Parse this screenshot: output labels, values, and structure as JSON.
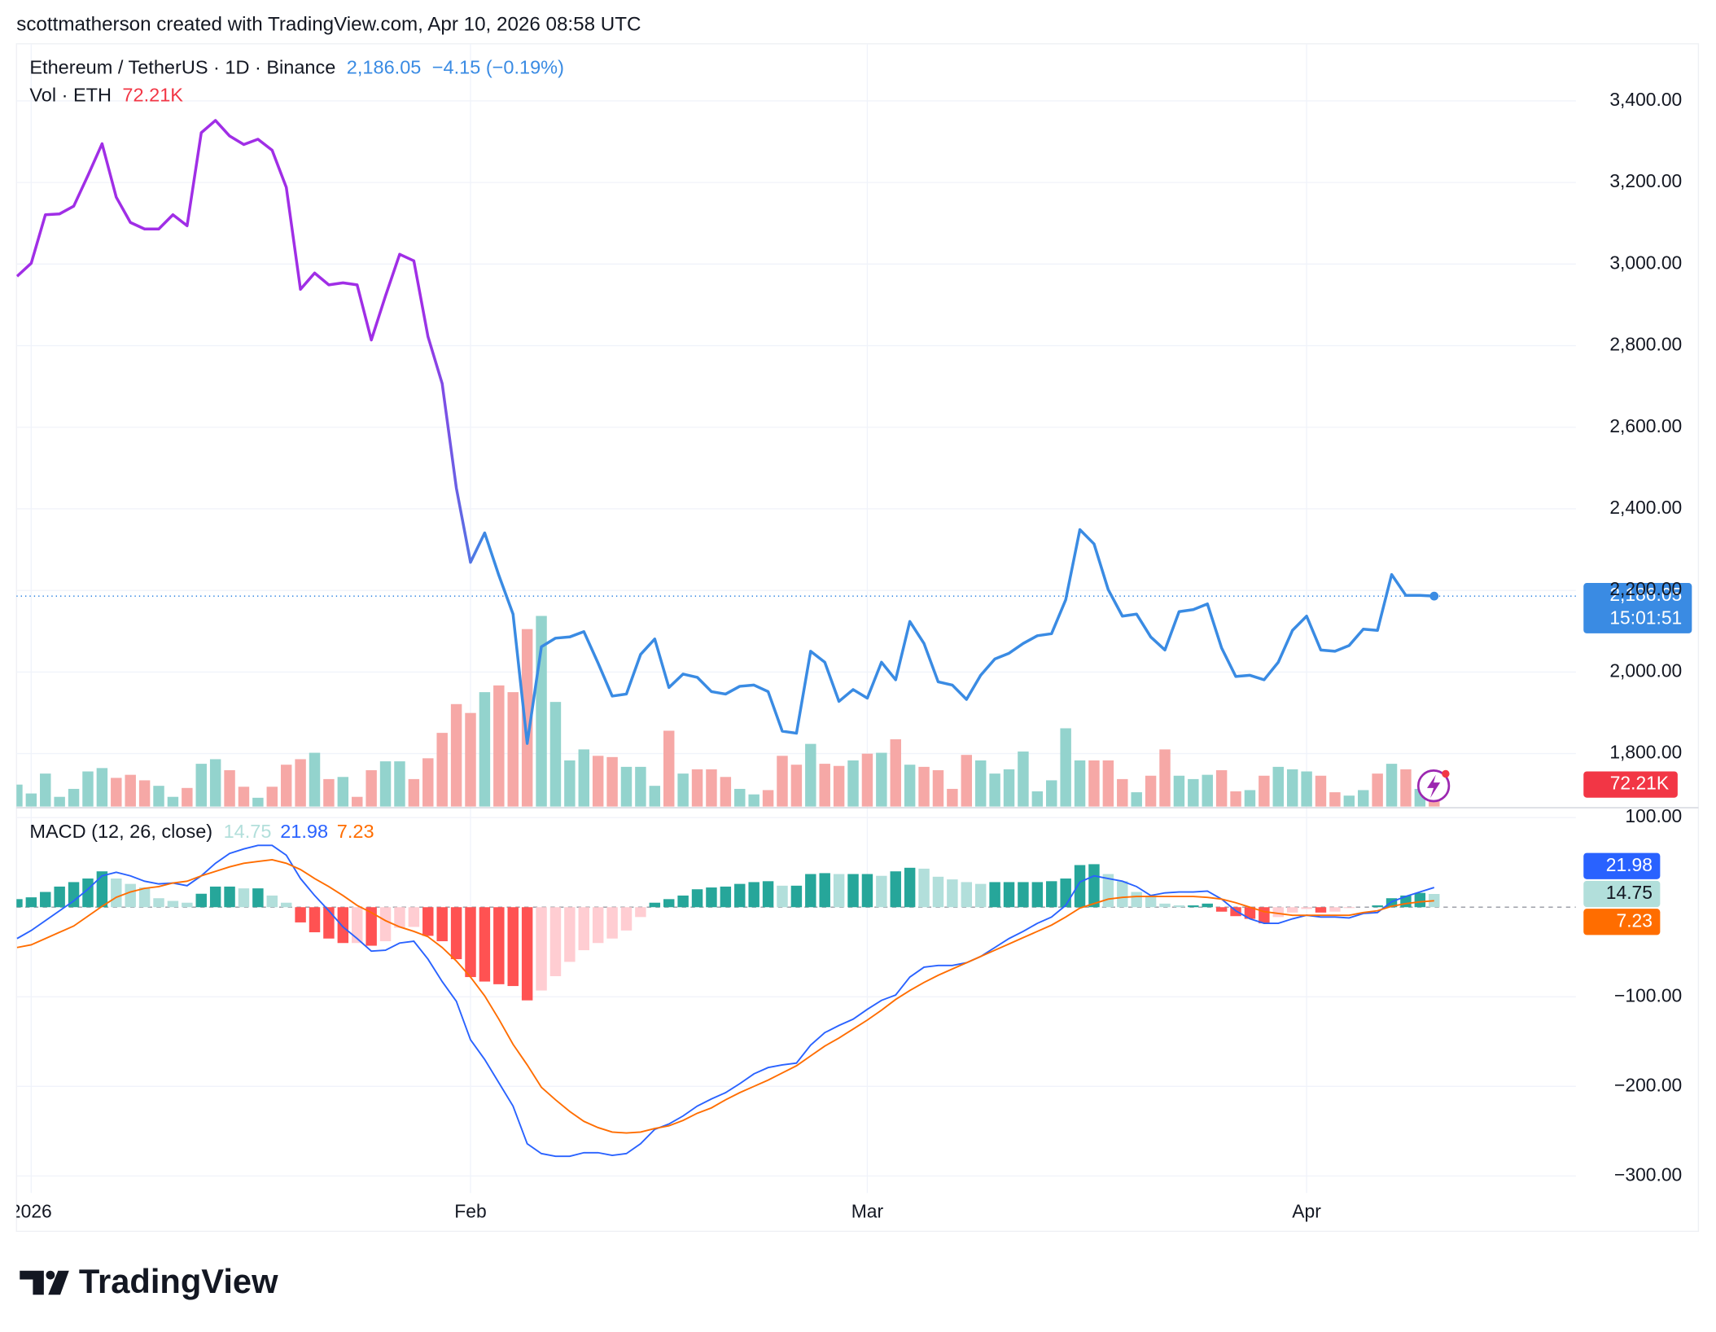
{
  "credit": "scottmatherson created with TradingView.com, Apr 10, 2026 08:58 UTC",
  "brand": "TradingView",
  "chart_data": [
    {
      "type": "line",
      "title": "Ethereum / TetherUS · 1D · Binance",
      "last_label": "2,186.05",
      "change_label": "−4.15 (−0.19%)",
      "countdown": "15:01:51",
      "color": "#3a8be3",
      "color_start": "#a02ee6",
      "x": [
        -1,
        0,
        1,
        2,
        3,
        4,
        5,
        6,
        7,
        8,
        9,
        10,
        11,
        12,
        13,
        14,
        15,
        16,
        17,
        18,
        19,
        20,
        21,
        22,
        23,
        24,
        25,
        26,
        27,
        28,
        29,
        30,
        31,
        32,
        33,
        34,
        35,
        36,
        37,
        38,
        39,
        40,
        41,
        42,
        43,
        44,
        45,
        46,
        47,
        48,
        49,
        50,
        51,
        52,
        53,
        54,
        55,
        56,
        57,
        58,
        59,
        60,
        61,
        62,
        63,
        64,
        65,
        66,
        67,
        68,
        69,
        70,
        71,
        72,
        73,
        74,
        75,
        76,
        77,
        78,
        79,
        80,
        81,
        82,
        83,
        84,
        85,
        86,
        87,
        88,
        89,
        90,
        91,
        92,
        93,
        94,
        95,
        96,
        97,
        98,
        99
      ],
      "values": [
        2970,
        3002,
        3121,
        3123,
        3142,
        3217,
        3295,
        3164,
        3102,
        3086,
        3086,
        3121,
        3094,
        3322,
        3352,
        3314,
        3293,
        3306,
        3279,
        3188,
        2938,
        2978,
        2949,
        2954,
        2949,
        2814,
        2922,
        3024,
        3008,
        2822,
        2707,
        2451,
        2269,
        2341,
        2237,
        2142,
        1825,
        2062,
        2083,
        2086,
        2099,
        2022,
        1941,
        1946,
        2043,
        2081,
        1962,
        1995,
        1987,
        1952,
        1946,
        1965,
        1968,
        1952,
        1855,
        1850,
        2051,
        2024,
        1928,
        1957,
        1936,
        2024,
        1981,
        2124,
        2070,
        1976,
        1968,
        1933,
        1992,
        2032,
        2046,
        2070,
        2089,
        2094,
        2177,
        2349,
        2314,
        2202,
        2137,
        2142,
        2086,
        2054,
        2148,
        2153,
        2167,
        2059,
        1989,
        1992,
        1981,
        2024,
        2102,
        2137,
        2054,
        2051,
        2065,
        2105,
        2102,
        2239,
        2188,
        2188,
        2186.05
      ],
      "xlim": [
        -1.04,
        109
      ],
      "xticks": [
        {
          "value": 0,
          "label": "2026"
        },
        {
          "value": 31,
          "label": "Feb"
        },
        {
          "value": 59,
          "label": "Mar"
        },
        {
          "value": 90,
          "label": "Apr"
        }
      ],
      "ylim": [
        1670,
        3540
      ],
      "yticks": [
        {
          "value": 1800,
          "label": "1,800.00"
        },
        {
          "value": 2000,
          "label": "2,000.00"
        },
        {
          "value": 2200,
          "label": "2,200.00"
        },
        {
          "value": 2400,
          "label": "2,400.00"
        },
        {
          "value": 2600,
          "label": "2,600.00"
        },
        {
          "value": 2800,
          "label": "2,800.00"
        },
        {
          "value": 3000,
          "label": "3,000.00"
        },
        {
          "value": 3200,
          "label": "3,200.00"
        },
        {
          "value": 3400,
          "label": "3,400.00"
        }
      ],
      "grid": true,
      "volume": {
        "name": "Vol · ETH",
        "values": [
          72,
          43,
          108,
          32,
          58,
          115,
          126,
          94,
          104,
          86,
          68,
          32,
          61,
          140,
          155,
          119,
          65,
          29,
          65,
          137,
          155,
          176,
          90,
          97,
          32,
          119,
          148,
          148,
          90,
          158,
          241,
          335,
          306,
          374,
          396,
          374,
          580,
          623,
          342,
          151,
          187,
          166,
          162,
          130,
          130,
          68,
          248,
          108,
          122,
          122,
          97,
          58,
          40,
          54,
          166,
          137,
          205,
          140,
          133,
          151,
          173,
          176,
          220,
          137,
          130,
          119,
          58,
          169,
          151,
          108,
          122,
          180,
          50,
          86,
          256,
          151,
          151,
          151,
          90,
          47,
          101,
          187,
          101,
          90,
          104,
          119,
          50,
          54,
          101,
          130,
          122,
          115,
          101,
          47,
          36,
          54,
          108,
          140,
          122,
          58,
          72.21
        ],
        "value_label": "72.21K",
        "up_color": "#93d3cd",
        "down_color": "#f6a8a6",
        "badge_color": "#f23645"
      }
    },
    {
      "type": "macd",
      "title": "MACD (12, 26, close)",
      "ylim": [
        -319,
        111
      ],
      "yticks": [
        {
          "value": -300,
          "label": "−300.00"
        },
        {
          "value": -200,
          "label": "−200.00"
        },
        {
          "value": -100,
          "label": "−100.00"
        },
        {
          "value": 100,
          "label": "100.00"
        }
      ],
      "histogram": {
        "values": [
          9,
          11,
          17,
          23,
          28,
          32,
          40,
          32,
          26,
          22,
          10,
          7,
          5,
          15,
          23,
          23,
          21,
          21,
          13,
          5,
          -17,
          -28,
          -35,
          -40,
          -40,
          -43,
          -38,
          -23,
          -22,
          -32,
          -38,
          -58,
          -78,
          -83,
          -86,
          -88,
          -104,
          -93,
          -77,
          -61,
          -48,
          -40,
          -35,
          -26,
          -11,
          5,
          9,
          13,
          20,
          22,
          23,
          26,
          28,
          29,
          24,
          24,
          37,
          38,
          37,
          37,
          37,
          35,
          40,
          44,
          43,
          34,
          31,
          28,
          26,
          28,
          28,
          28,
          28,
          29,
          32,
          47,
          48,
          37,
          29,
          17,
          12,
          4,
          2,
          2,
          4,
          -5,
          -10,
          -13,
          -18,
          -11,
          -6,
          -2,
          -6,
          -5,
          -1,
          0,
          2,
          10,
          13,
          16,
          14.75
        ],
        "rise_color": "#26a69a",
        "fall_color": "#b2dfdb",
        "neg_fall_color": "#ff5252",
        "neg_rise_color": "#ffcdd2"
      },
      "macd": {
        "color": "#2962ff",
        "values": [
          -35,
          -26,
          -15,
          -4,
          7,
          20,
          35,
          39,
          35,
          29,
          26,
          27,
          24,
          35,
          49,
          60,
          65,
          69,
          69,
          58,
          32,
          13,
          -4,
          -22,
          -35,
          -49,
          -48,
          -40,
          -38,
          -58,
          -83,
          -105,
          -148,
          -170,
          -196,
          -222,
          -264,
          -275,
          -278,
          -278,
          -274,
          -274,
          -277,
          -275,
          -264,
          -248,
          -242,
          -233,
          -222,
          -214,
          -207,
          -197,
          -186,
          -179,
          -176,
          -174,
          -154,
          -140,
          -132,
          -125,
          -114,
          -104,
          -98,
          -78,
          -67,
          -65,
          -65,
          -62,
          -55,
          -45,
          -35,
          -27,
          -18,
          -11,
          2,
          28,
          35,
          32,
          29,
          23,
          13,
          16,
          17,
          17,
          18,
          9,
          -4,
          -13,
          -18,
          -18,
          -13,
          -9,
          -11,
          -11,
          -12,
          -7,
          -6,
          6,
          12,
          17,
          21.98
        ]
      },
      "signal": {
        "color": "#ff6d00",
        "values": [
          -45,
          -42,
          -35,
          -28,
          -21,
          -10,
          1,
          11,
          17,
          21,
          23,
          27,
          29,
          35,
          40,
          45,
          49,
          51,
          53,
          49,
          42,
          32,
          23,
          13,
          2,
          -6,
          -15,
          -22,
          -27,
          -33,
          -45,
          -60,
          -78,
          -99,
          -125,
          -153,
          -176,
          -201,
          -215,
          -228,
          -239,
          -246,
          -251,
          -252,
          -251,
          -247,
          -244,
          -238,
          -230,
          -224,
          -215,
          -207,
          -200,
          -193,
          -185,
          -177,
          -166,
          -155,
          -146,
          -136,
          -126,
          -115,
          -103,
          -93,
          -84,
          -76,
          -69,
          -62,
          -55,
          -48,
          -41,
          -34,
          -27,
          -20,
          -11,
          -1,
          4,
          9,
          11,
          12,
          12,
          12,
          12,
          12,
          11,
          9,
          5,
          0,
          -5,
          -7,
          -9,
          -9,
          -9,
          -9,
          -9,
          -6,
          -4,
          1,
          4,
          6,
          7.23
        ]
      }
    }
  ]
}
